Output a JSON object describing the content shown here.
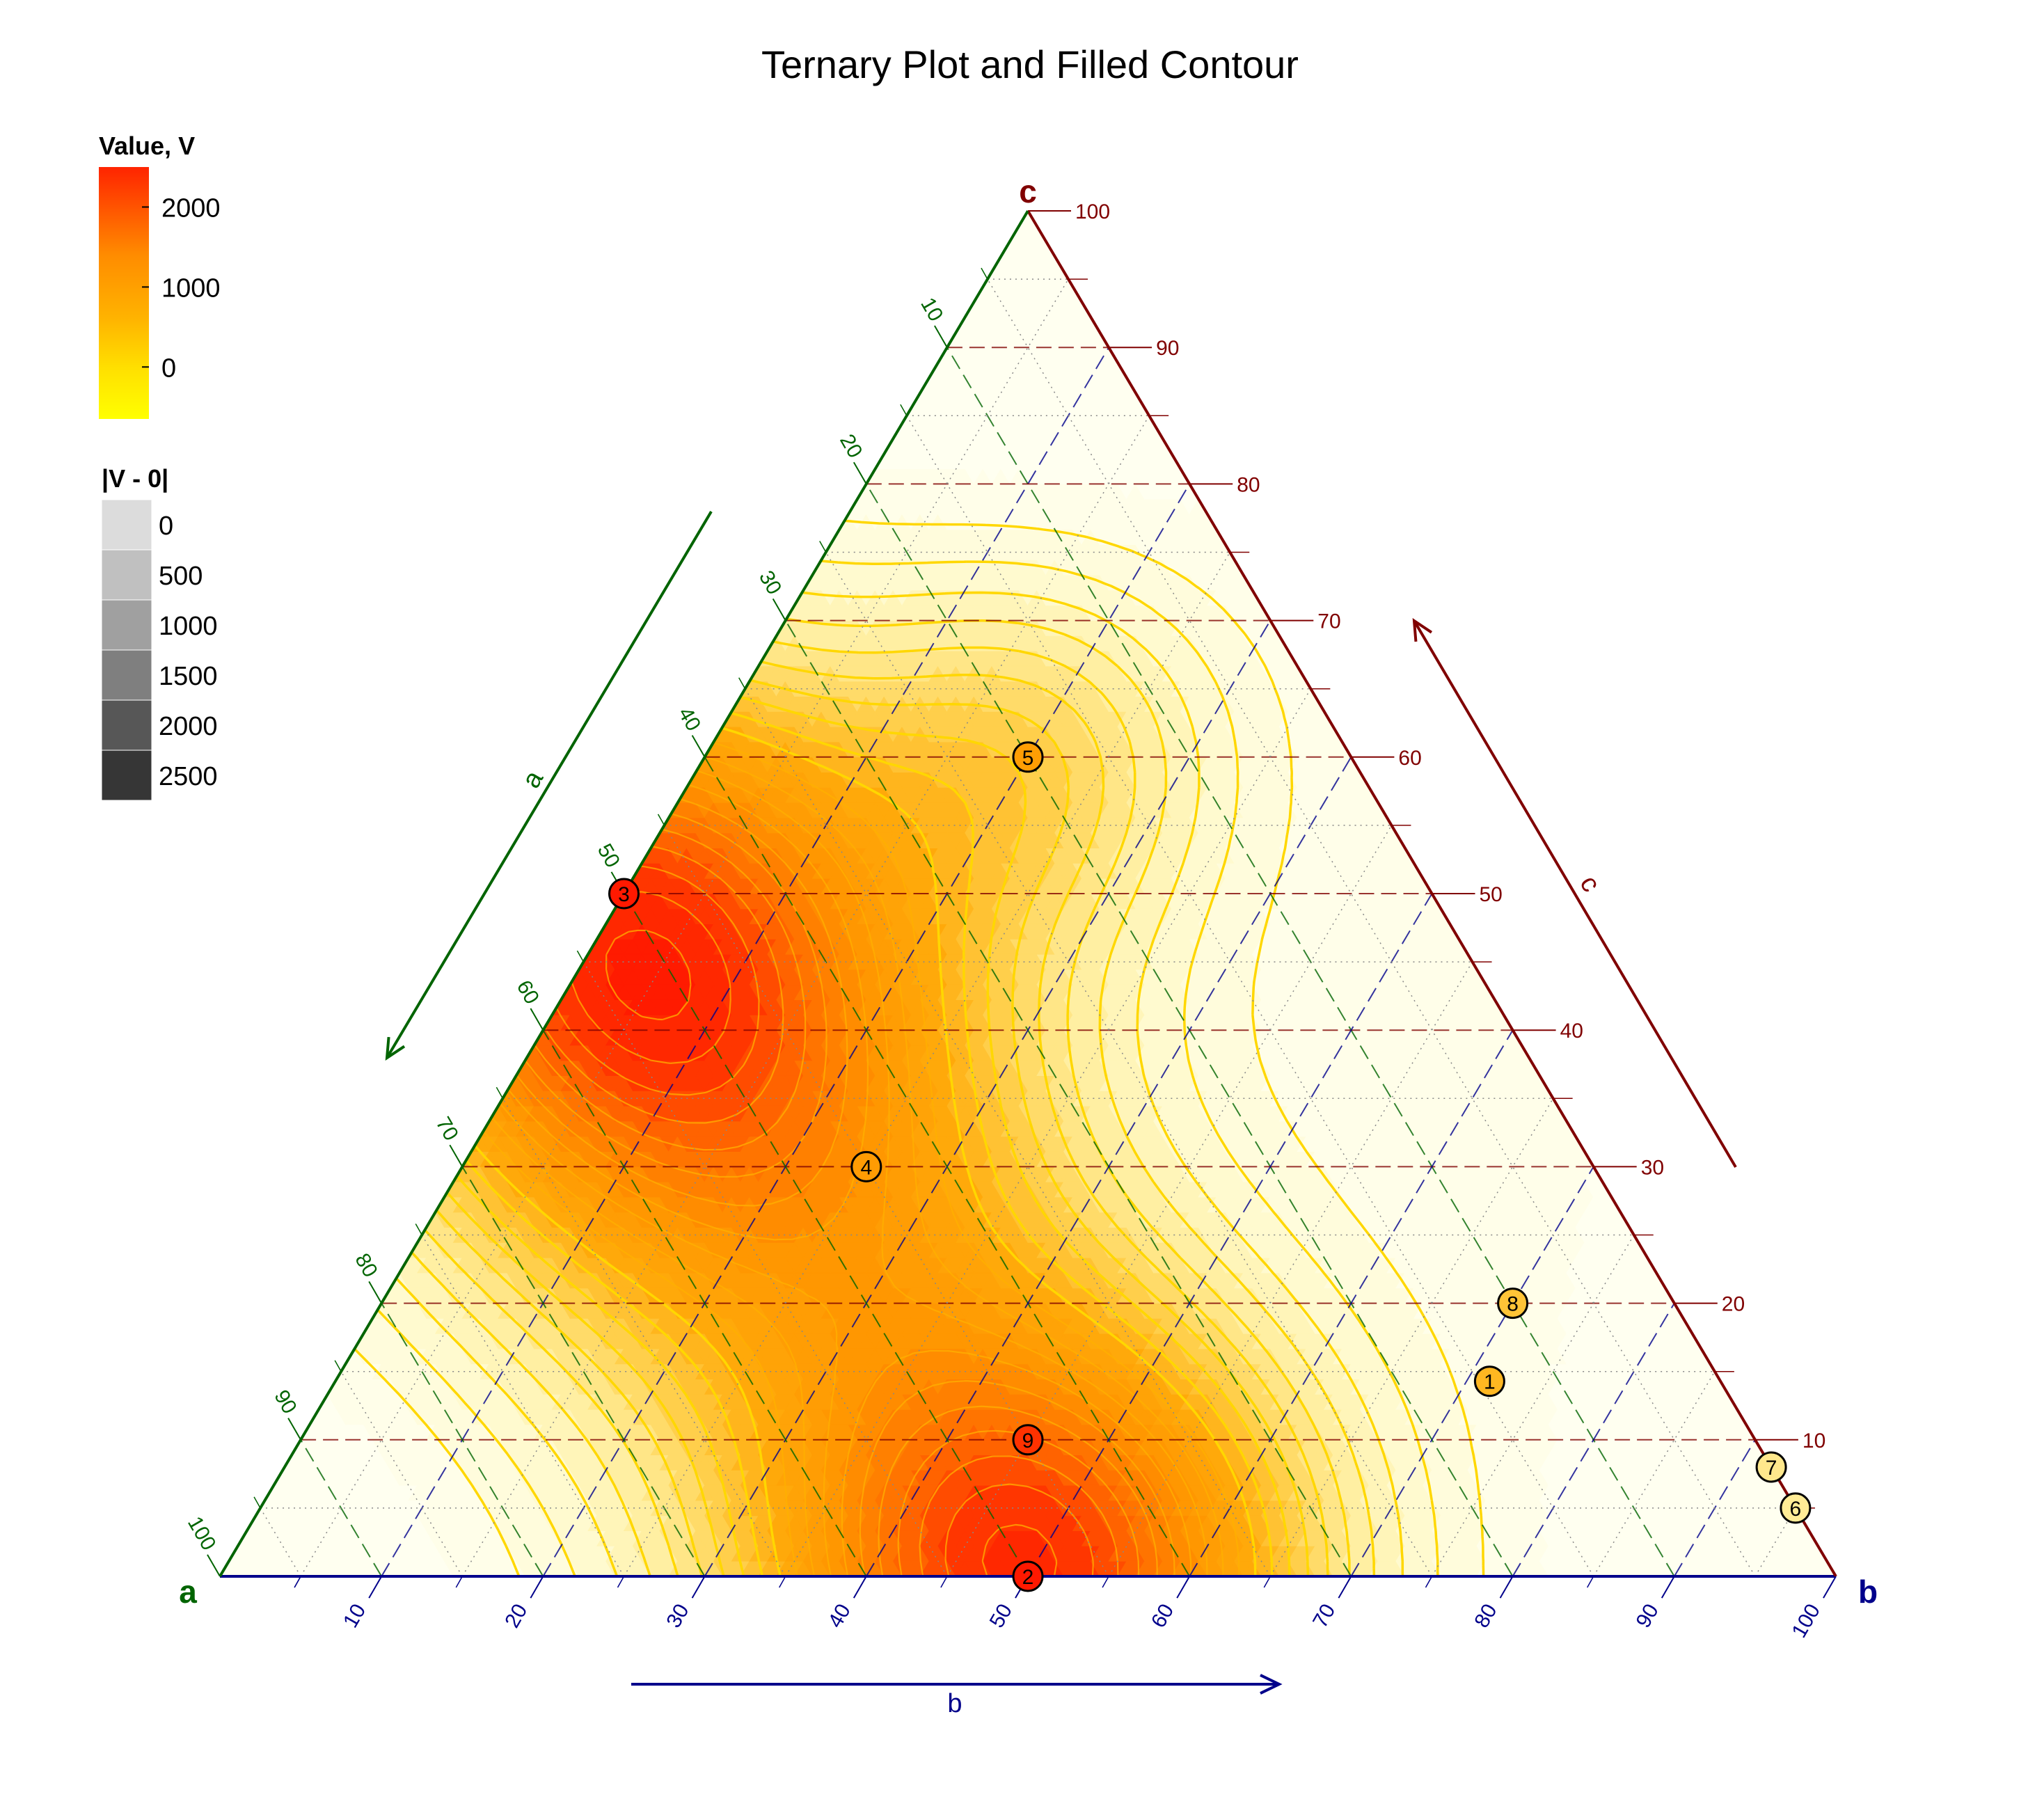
{
  "chart_data": {
    "type": "ternary",
    "title": "Ternary Plot and Filled Contour",
    "axes": {
      "a": {
        "label": "a",
        "arrow_label": "a",
        "color": "#006400",
        "ticks": [
          "10",
          "20",
          "30",
          "40",
          "50",
          "60",
          "70",
          "80",
          "90",
          "100"
        ]
      },
      "b": {
        "label": "b",
        "arrow_label": "b",
        "color": "#00008B",
        "ticks": [
          "10",
          "20",
          "30",
          "40",
          "50",
          "60",
          "70",
          "80",
          "90",
          "100"
        ]
      },
      "c": {
        "label": "c",
        "arrow_label": "c",
        "color": "#800000",
        "ticks": [
          "10",
          "20",
          "30",
          "40",
          "50",
          "60",
          "70",
          "80",
          "90",
          "100"
        ]
      }
    },
    "legend_value": {
      "title": "Value, V",
      "ticks": [
        "2000",
        "1000",
        "0"
      ],
      "tick_values": [
        2000,
        1000,
        0
      ],
      "range": [
        -650,
        2500
      ],
      "colors": [
        "#FFFF00",
        "#FFD700",
        "#FFA500",
        "#FF8C00",
        "#FF2400"
      ]
    },
    "legend_abs": {
      "title": "|V - 0|",
      "entries": [
        "0",
        "500",
        "1000",
        "1500",
        "2000",
        "2500"
      ],
      "colors": [
        "#DCDCDC",
        "#C0C0C0",
        "#A0A0A0",
        "#7F7F7F",
        "#575757",
        "#363636"
      ]
    },
    "points": [
      {
        "id": "1",
        "a": 15,
        "b": 75,
        "c": 15,
        "value": 450
      },
      {
        "id": "2",
        "a": 50,
        "b": 50,
        "c": 0,
        "value": 2300
      },
      {
        "id": "3",
        "a": 50,
        "b": 0,
        "c": 50,
        "value": 2400
      },
      {
        "id": "4",
        "a": 45,
        "b": 25,
        "c": 30,
        "value": 950
      },
      {
        "id": "5",
        "a": 20,
        "b": 20,
        "c": 60,
        "value": 900
      },
      {
        "id": "6",
        "a": 0,
        "b": 95,
        "c": 5,
        "value": -200
      },
      {
        "id": "7",
        "a": 0,
        "b": 92,
        "c": 8,
        "value": -150
      },
      {
        "id": "8",
        "a": 10,
        "b": 70,
        "c": 20,
        "value": 300
      },
      {
        "id": "9",
        "a": 45,
        "b": 45,
        "c": 10,
        "value": 2000
      }
    ]
  }
}
